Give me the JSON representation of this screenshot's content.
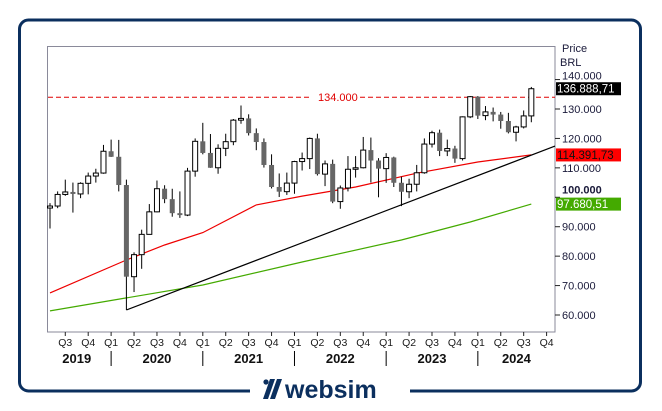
{
  "chart_data": {
    "type": "candlestick",
    "currency_label": "Price",
    "unit_label": "BRL",
    "period": "monthly",
    "ylim": [
      54200,
      151000
    ],
    "y_ticks": [
      "60.000",
      "70.000",
      "80.000",
      "90.000",
      "100.000",
      "110.000",
      "120.000",
      "130.000",
      "140.000"
    ],
    "y_tick_values": [
      60000,
      70000,
      80000,
      90000,
      100000,
      110000,
      120000,
      130000,
      140000
    ],
    "x_quarter_ticks": [
      "Q3",
      "Q4",
      "Q1",
      "Q2",
      "Q3",
      "Q4",
      "Q1",
      "Q2",
      "Q3",
      "Q4",
      "Q1",
      "Q2",
      "Q3",
      "Q4",
      "Q1",
      "Q2",
      "Q3",
      "Q4",
      "Q1",
      "Q2",
      "Q3",
      "Q4"
    ],
    "x_years": [
      "2019",
      "2020",
      "2021",
      "2022",
      "2023",
      "2024"
    ],
    "reference_line": {
      "value": 134000,
      "label": "134.000",
      "color": "#e00000"
    },
    "last_price": {
      "value": 136888.71,
      "label": "136.888,71",
      "color": "#000000"
    },
    "ma_red": {
      "label": "114.391,73",
      "color": "#ee0000",
      "points": [
        [
          0,
          67500
        ],
        [
          10,
          78700
        ],
        [
          15,
          83800
        ],
        [
          20,
          88000
        ],
        [
          27,
          97400
        ],
        [
          33,
          100400
        ],
        [
          40,
          103500
        ],
        [
          48,
          108200
        ],
        [
          56,
          112000
        ],
        [
          63,
          114391.73
        ]
      ]
    },
    "ma_green": {
      "label": "97.680,51",
      "color": "#44aa00",
      "points": [
        [
          0,
          61400
        ],
        [
          10,
          65800
        ],
        [
          20,
          70200
        ],
        [
          33,
          78000
        ],
        [
          46,
          85500
        ],
        [
          55,
          91600
        ],
        [
          63,
          97680.51
        ]
      ]
    },
    "trendline": {
      "color": "#000000",
      "points": [
        [
          10,
          61700
        ],
        [
          66.1,
          117400
        ]
      ]
    },
    "candles": [
      [
        "2019-05",
        96350,
        98000,
        89400,
        97030
      ],
      [
        "2019-06",
        97030,
        102000,
        96300,
        100967
      ],
      [
        "2019-07",
        100967,
        106000,
        100500,
        101812
      ],
      [
        "2019-08",
        101812,
        105000,
        94800,
        101135
      ],
      [
        "2019-09",
        101135,
        105100,
        99700,
        104745
      ],
      [
        "2019-10",
        104745,
        108400,
        101000,
        107220
      ],
      [
        "2019-11",
        107220,
        109700,
        105000,
        108233
      ],
      [
        "2019-12",
        108233,
        117800,
        108000,
        115645
      ],
      [
        "2020-01",
        115645,
        119600,
        113700,
        113761
      ],
      [
        "2020-02",
        113761,
        119500,
        102000,
        104172
      ],
      [
        "2020-03",
        104172,
        106000,
        61700,
        73020
      ],
      [
        "2020-04",
        73020,
        81300,
        67800,
        80506
      ],
      [
        "2020-05",
        80506,
        89000,
        75700,
        87403
      ],
      [
        "2020-06",
        87403,
        97700,
        87400,
        95056
      ],
      [
        "2020-07",
        95056,
        105700,
        94900,
        102912
      ],
      [
        "2020-08",
        102912,
        104100,
        98000,
        99369
      ],
      [
        "2020-09",
        99369,
        102900,
        93400,
        94603
      ],
      [
        "2020-10",
        94603,
        102000,
        93000,
        93952
      ],
      [
        "2020-11",
        93952,
        110000,
        93600,
        108893
      ],
      [
        "2020-12",
        108893,
        120000,
        107000,
        119017
      ],
      [
        "2021-01",
        119017,
        125300,
        114600,
        115068
      ],
      [
        "2021-02",
        115068,
        121500,
        110000,
        110035
      ],
      [
        "2021-03",
        110035,
        118000,
        108000,
        116634
      ],
      [
        "2021-04",
        116634,
        121600,
        114000,
        118894
      ],
      [
        "2021-05",
        118894,
        126600,
        117700,
        126216
      ],
      [
        "2021-06",
        126216,
        131200,
        125000,
        126802
      ],
      [
        "2021-07",
        126802,
        128200,
        121000,
        121801
      ],
      [
        "2021-08",
        121801,
        123400,
        116000,
        118781
      ],
      [
        "2021-09",
        118781,
        120000,
        110100,
        110979
      ],
      [
        "2021-10",
        110979,
        114600,
        103000,
        103501
      ],
      [
        "2021-11",
        103501,
        108100,
        100100,
        101915
      ],
      [
        "2021-12",
        101915,
        108400,
        100800,
        104822
      ],
      [
        "2022-01",
        104822,
        112400,
        101200,
        112144
      ],
      [
        "2022-02",
        112144,
        115200,
        109100,
        113142
      ],
      [
        "2022-03",
        113142,
        120300,
        109600,
        119999
      ],
      [
        "2022-04",
        119999,
        121600,
        107400,
        107876
      ],
      [
        "2022-05",
        107876,
        112500,
        103800,
        111351
      ],
      [
        "2022-06",
        111351,
        112800,
        98000,
        98542
      ],
      [
        "2022-07",
        98542,
        104000,
        96100,
        103165
      ],
      [
        "2022-08",
        103165,
        114000,
        102000,
        109523
      ],
      [
        "2022-09",
        109523,
        114000,
        106700,
        110037
      ],
      [
        "2022-10",
        110037,
        120500,
        109800,
        116037
      ],
      [
        "2022-11",
        116037,
        120300,
        105000,
        112486
      ],
      [
        "2022-12",
        112486,
        113300,
        100000,
        109735
      ],
      [
        "2023-01",
        109735,
        115000,
        104900,
        113532
      ],
      [
        "2023-02",
        113532,
        113800,
        103500,
        104932
      ],
      [
        "2023-03",
        104932,
        107000,
        97000,
        101882
      ],
      [
        "2023-04",
        101882,
        106300,
        99700,
        104432
      ],
      [
        "2023-05",
        104432,
        111000,
        102000,
        108335
      ],
      [
        "2023-06",
        108335,
        120000,
        108000,
        118087
      ],
      [
        "2023-07",
        118087,
        122600,
        116900,
        121943
      ],
      [
        "2023-08",
        121943,
        123000,
        114000,
        115742
      ],
      [
        "2023-09",
        115742,
        119600,
        114000,
        116565
      ],
      [
        "2023-10",
        116565,
        117500,
        111700,
        113144
      ],
      [
        "2023-11",
        113144,
        127500,
        112500,
        127331
      ],
      [
        "2023-12",
        127331,
        134400,
        126900,
        134185
      ],
      [
        "2024-01",
        134185,
        134400,
        126600,
        127752
      ],
      [
        "2024-02",
        127752,
        131000,
        126200,
        129020
      ],
      [
        "2024-03",
        129020,
        130500,
        125800,
        128106
      ],
      [
        "2024-04",
        128106,
        129000,
        123300,
        125924
      ],
      [
        "2024-05",
        125924,
        128700,
        121700,
        122098
      ],
      [
        "2024-06",
        122098,
        124300,
        119000,
        123907
      ],
      [
        "2024-07",
        123907,
        129500,
        123400,
        127652
      ],
      [
        "2024-08",
        127652,
        137500,
        125500,
        136888.71
      ]
    ],
    "up_color": "#ffffff",
    "down_color": "#666666"
  },
  "branding": {
    "logo_text": "websim",
    "color": "#0b2f5e"
  }
}
